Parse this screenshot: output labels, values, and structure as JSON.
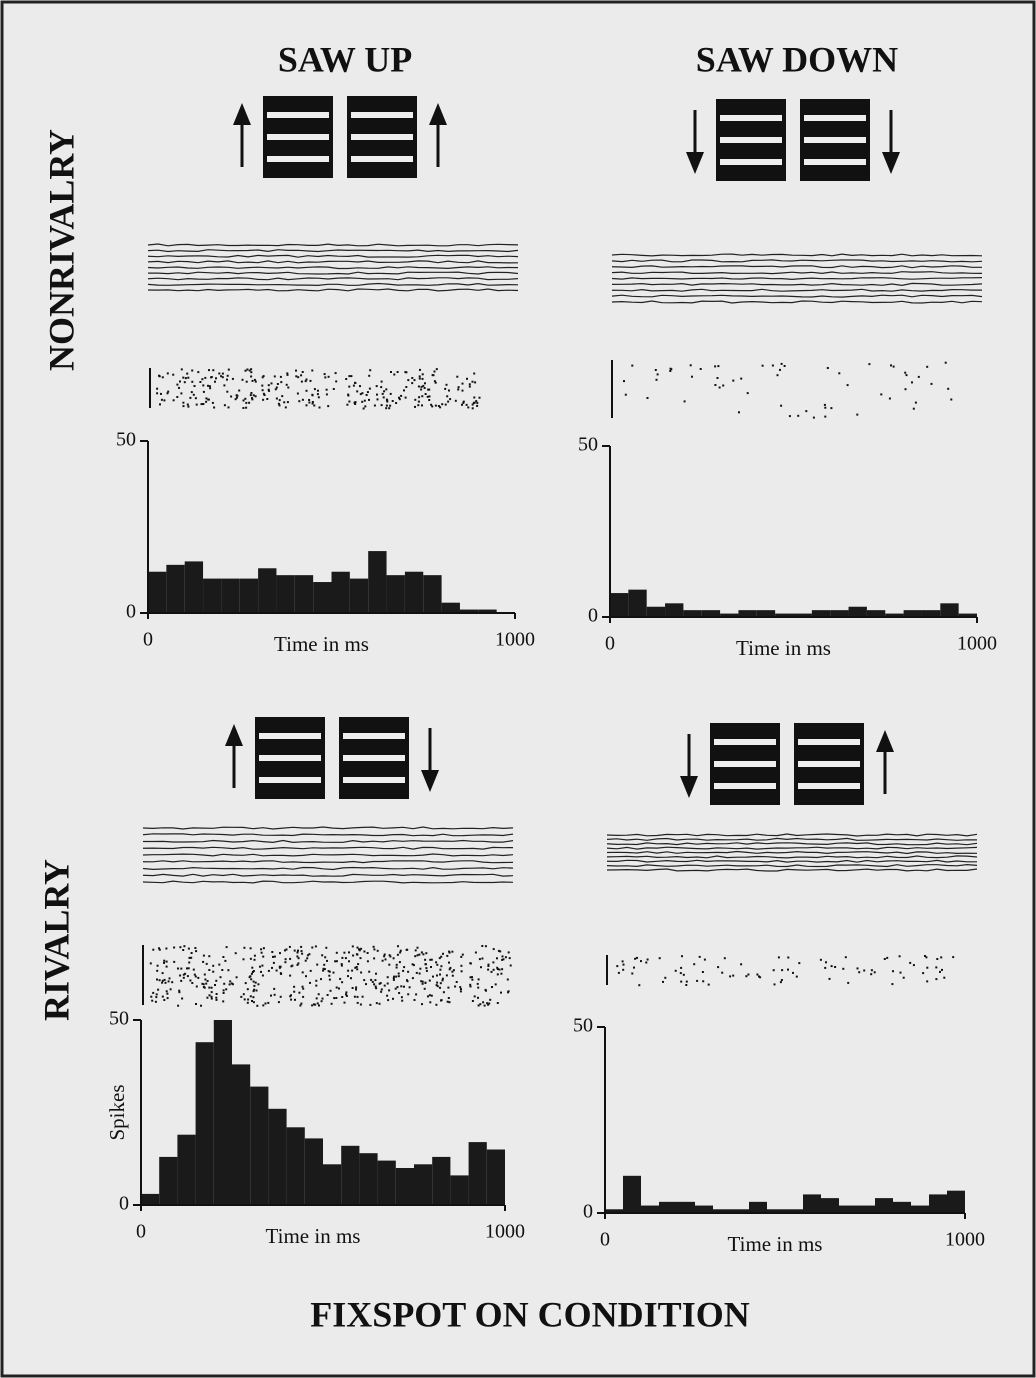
{
  "title": "FIXSPOT ON CONDITION",
  "column_titles": [
    "SAW UP",
    "SAW DOWN"
  ],
  "row_titles": [
    "NONRIVALRY",
    "RIVALRY"
  ],
  "chart_data": [
    {
      "type": "histogram",
      "color": "#1a1a1a",
      "xlabel": "Time in ms",
      "bins": [
        0,
        50,
        100,
        150,
        200,
        250,
        300,
        350,
        400,
        450,
        500,
        550,
        600,
        650,
        700,
        750,
        800,
        850,
        900,
        950,
        1000
      ],
      "values": [
        12,
        14,
        15,
        10,
        10,
        10,
        13,
        11,
        11,
        9,
        12,
        10,
        18,
        11,
        12,
        11,
        3,
        1,
        1,
        0
      ],
      "xlim": [
        0,
        1000
      ],
      "xticks": [
        0,
        1000
      ],
      "ylim": [
        0,
        50
      ],
      "yticks": [
        0,
        50
      ]
    },
    {
      "type": "histogram",
      "color": "#1a1a1a",
      "xlabel": "Time in ms",
      "bins": [
        0,
        50,
        100,
        150,
        200,
        250,
        300,
        350,
        400,
        450,
        500,
        550,
        600,
        650,
        700,
        750,
        800,
        850,
        900,
        950,
        1000
      ],
      "values": [
        7,
        8,
        3,
        4,
        2,
        2,
        1,
        2,
        2,
        1,
        1,
        2,
        2,
        3,
        2,
        1,
        2,
        2,
        4,
        1
      ],
      "xlim": [
        0,
        1000
      ],
      "xticks": [
        0,
        1000
      ],
      "ylim": [
        0,
        50
      ],
      "yticks": [
        0,
        50
      ]
    },
    {
      "type": "histogram",
      "color": "#1a1a1a",
      "xlabel": "Time in ms",
      "ylabel": "Spikes",
      "bins": [
        0,
        50,
        100,
        150,
        200,
        250,
        300,
        350,
        400,
        450,
        500,
        550,
        600,
        650,
        700,
        750,
        800,
        850,
        900,
        950,
        1000
      ],
      "values": [
        3,
        13,
        19,
        44,
        50,
        38,
        32,
        26,
        21,
        18,
        11,
        16,
        14,
        12,
        10,
        11,
        13,
        8,
        17,
        15
      ],
      "xlim": [
        0,
        1000
      ],
      "xticks": [
        0,
        1000
      ],
      "ylim": [
        0,
        50
      ],
      "yticks": [
        0,
        50
      ]
    },
    {
      "type": "histogram",
      "color": "#1a1a1a",
      "xlabel": "Time in ms",
      "bins": [
        0,
        50,
        100,
        150,
        200,
        250,
        300,
        350,
        400,
        450,
        500,
        550,
        600,
        650,
        700,
        750,
        800,
        850,
        900,
        950,
        1000
      ],
      "values": [
        1,
        10,
        2,
        3,
        3,
        2,
        1,
        1,
        3,
        1,
        1,
        5,
        4,
        2,
        2,
        4,
        3,
        2,
        5,
        6
      ],
      "xlim": [
        0,
        1000
      ],
      "xticks": [
        0,
        1000
      ],
      "ylim": [
        0,
        50
      ],
      "yticks": [
        0,
        50
      ]
    }
  ]
}
